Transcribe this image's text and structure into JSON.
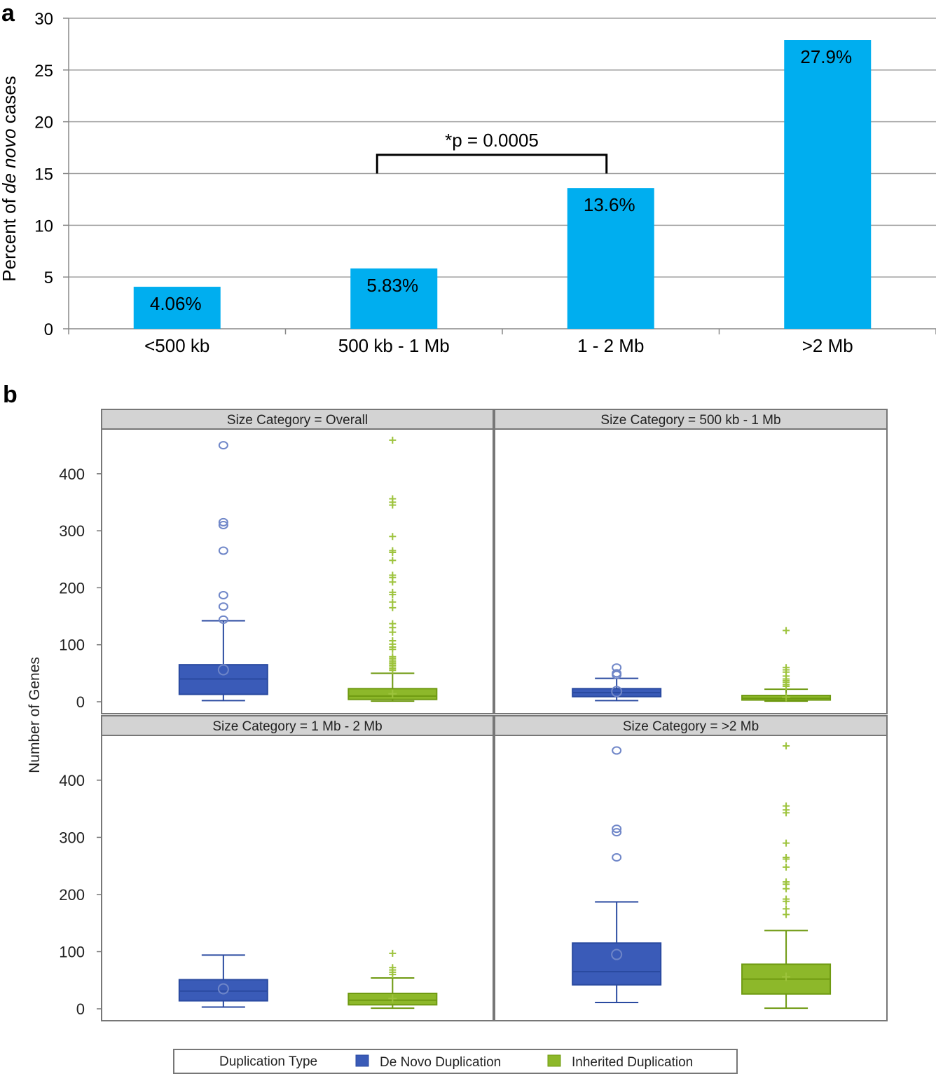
{
  "panel_a": {
    "label": "a",
    "significance": "*p = 0.0005"
  },
  "panel_b": {
    "label": "b"
  },
  "chart_data": [
    {
      "type": "bar",
      "title": "",
      "ylabel": "Percent of de novo cases",
      "ylabel_parts": [
        "Percent of ",
        "de novo",
        " cases"
      ],
      "xlabel": "",
      "categories": [
        "<500 kb",
        "500 kb - 1 Mb",
        "1 - 2 Mb",
        ">2 Mb"
      ],
      "values": [
        4.06,
        5.83,
        13.6,
        27.9
      ],
      "data_labels": [
        "4.06%",
        "5.83%",
        "13.6%",
        "27.9%"
      ],
      "ylim": [
        0,
        30
      ],
      "yticks": [
        0,
        5,
        10,
        15,
        20,
        25,
        30
      ],
      "grid": true,
      "bar_color": "#00aeef",
      "annotation": {
        "text": "*p = 0.0005",
        "between": [
          "500 kb - 1 Mb",
          "1 - 2 Mb"
        ]
      }
    },
    {
      "type": "box",
      "ylabel": "Number of Genes",
      "ylim": [
        0,
        460
      ],
      "yticks": [
        0,
        100,
        200,
        300,
        400
      ],
      "legend": {
        "title": "Duplication Type",
        "entries": [
          {
            "name": "De Novo Duplication",
            "color": "#3a5bb8"
          },
          {
            "name": "Inherited Duplication",
            "color": "#8db82a"
          }
        ],
        "position": "bottom"
      },
      "panels": [
        {
          "title": "Size Category = Overall",
          "boxes": [
            {
              "series": "De Novo Duplication",
              "q1": 13,
              "median": 40,
              "q3": 65,
              "whisker_low": 2,
              "whisker_high": 142,
              "mean": 56,
              "outliers": [
                450,
                315,
                310,
                265,
                187,
                167,
                144
              ]
            },
            {
              "series": "Inherited Duplication",
              "q1": 4,
              "median": 10,
              "q3": 23,
              "whisker_low": 1,
              "whisker_high": 50,
              "mean": 14,
              "outliers": [
                459,
                356,
                350,
                345,
                290,
                265,
                262,
                248,
                222,
                218,
                210,
                192,
                188,
                175,
                165,
                137,
                130,
                122,
                107,
                101,
                96,
                92,
                79,
                76,
                73,
                70,
                67,
                64,
                61,
                58,
                55
              ]
            }
          ]
        },
        {
          "title": "Size Category = 500 kb - 1 Mb",
          "boxes": [
            {
              "series": "De Novo Duplication",
              "q1": 9,
              "median": 16,
              "q3": 23,
              "whisker_low": 2,
              "whisker_high": 41,
              "mean": 18,
              "outliers": [
                60,
                50,
                47
              ]
            },
            {
              "series": "Inherited Duplication",
              "q1": 3,
              "median": 6,
              "q3": 11,
              "whisker_low": 1,
              "whisker_high": 22,
              "mean": 8,
              "outliers": [
                125,
                60,
                56,
                52,
                45,
                40,
                37,
                34,
                30,
                27
              ]
            }
          ]
        },
        {
          "title": "Size Category = 1 Mb - 2 Mb",
          "boxes": [
            {
              "series": "De Novo Duplication",
              "q1": 14,
              "median": 31,
              "q3": 51,
              "whisker_low": 3,
              "whisker_high": 94,
              "mean": 35,
              "outliers": []
            },
            {
              "series": "Inherited Duplication",
              "q1": 7,
              "median": 15,
              "q3": 27,
              "whisker_low": 1,
              "whisker_high": 54,
              "mean": 18,
              "outliers": [
                97,
                72,
                68,
                64,
                60
              ]
            }
          ]
        },
        {
          "title": "Size Category = >2 Mb",
          "boxes": [
            {
              "series": "De Novo Duplication",
              "q1": 42,
              "median": 65,
              "q3": 115,
              "whisker_low": 11,
              "whisker_high": 187,
              "mean": 95,
              "outliers": [
                452,
                315,
                309,
                265
              ]
            },
            {
              "series": "Inherited Duplication",
              "q1": 26,
              "median": 52,
              "q3": 78,
              "whisker_low": 1,
              "whisker_high": 137,
              "mean": 56,
              "outliers": [
                460,
                355,
                348,
                343,
                290,
                265,
                262,
                248,
                222,
                218,
                210,
                192,
                188,
                175,
                165
              ]
            }
          ]
        }
      ]
    }
  ]
}
